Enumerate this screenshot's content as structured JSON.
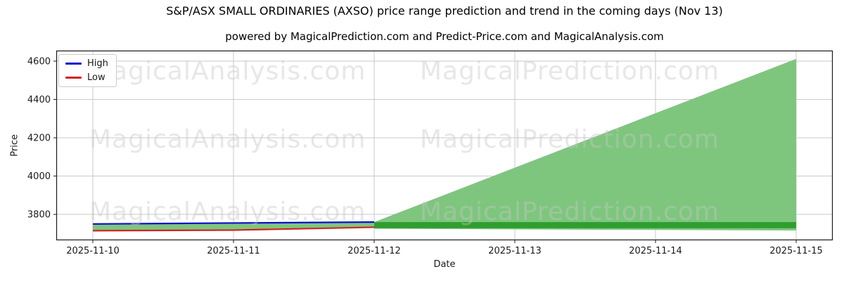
{
  "header": {
    "title": "S&P/ASX SMALL ORDINARIES (AXSO) price range prediction and trend in the coming days (Nov 13)",
    "subtitle": "powered by MagicalPrediction.com and Predict-Price.com and MagicalAnalysis.com"
  },
  "watermarks": {
    "left": "MagicalAnalysis.com",
    "right": "MagicalPrediction.com"
  },
  "legend": {
    "items": [
      {
        "label": "High",
        "color": "#0d0dd0"
      },
      {
        "label": "Low",
        "color": "#d42121"
      }
    ]
  },
  "chart_data": {
    "type": "line",
    "title": "S&P/ASX SMALL ORDINARIES (AXSO) price range prediction and trend in the coming days (Nov 13)",
    "subtitle": "powered by MagicalPrediction.com and Predict-Price.com and MagicalAnalysis.com",
    "xlabel": "Date",
    "ylabel": "Price",
    "categories": [
      "2025-11-10",
      "2025-11-11",
      "2025-11-12",
      "2025-11-13",
      "2025-11-14",
      "2025-11-15"
    ],
    "yticks": [
      3800,
      4000,
      4200,
      4400,
      4600
    ],
    "ylim": [
      3665,
      4655
    ],
    "grid": true,
    "legend_position": "upper left",
    "axis_color": "#1a1a1a",
    "grid_color": "#c9c9c9",
    "series": [
      {
        "name": "High",
        "color": "#0d0dd0",
        "x_index": [
          0,
          1,
          2
        ],
        "values": [
          3750,
          3755,
          3760
        ]
      },
      {
        "name": "Low",
        "color": "#d42121",
        "x_index": [
          0,
          1,
          2
        ],
        "values": [
          3715,
          3718,
          3733
        ]
      }
    ],
    "bands": [
      {
        "name": "high-low-range",
        "color": "#7ec67e",
        "x_index": [
          0,
          1,
          2
        ],
        "upper": [
          3750,
          3755,
          3760
        ],
        "lower": [
          3715,
          3718,
          3733
        ]
      },
      {
        "name": "forecast-fan",
        "color": "#7ec67e",
        "x_index": [
          2,
          3,
          4,
          5
        ],
        "upper": [
          3760,
          4044,
          4328,
          4612
        ],
        "lower": [
          3725,
          3722,
          3719,
          3716
        ]
      },
      {
        "name": "forecast-core-band",
        "color": "#2f9e2f",
        "x_index": [
          2,
          5
        ],
        "upper": [
          3760,
          3760
        ],
        "lower": [
          3728,
          3728
        ]
      }
    ]
  }
}
